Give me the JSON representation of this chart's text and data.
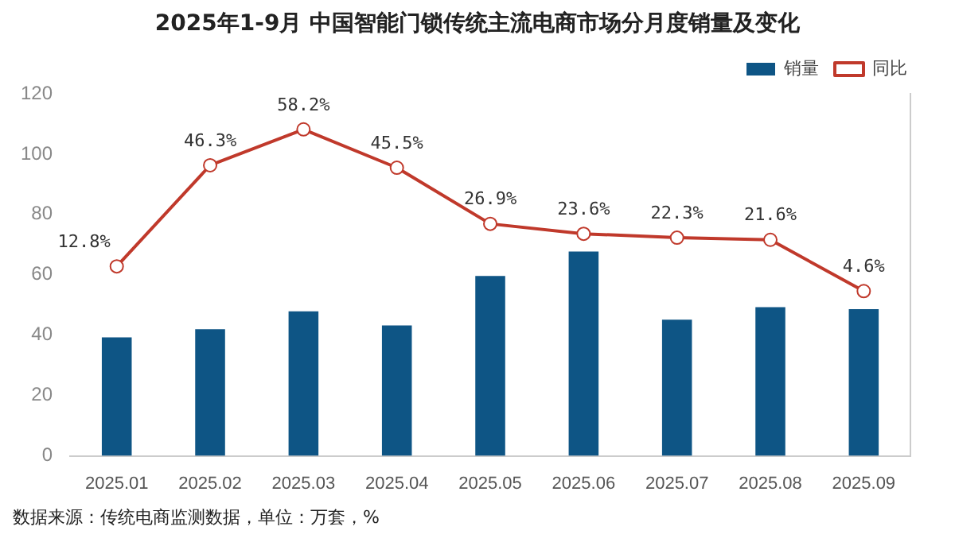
{
  "chart_data": {
    "type": "bar",
    "title": "2025年1-9月 中国智能门锁传统主流电商市场分月度销量及变化",
    "categories": [
      "2025.01",
      "2025.02",
      "2025.03",
      "2025.04",
      "2025.05",
      "2025.06",
      "2025.07",
      "2025.08",
      "2025.09"
    ],
    "series": [
      {
        "name": "销量",
        "color": "#0e5585",
        "values": [
          39.3,
          42.0,
          47.9,
          43.2,
          59.6,
          67.7,
          45.1,
          49.3,
          48.6
        ]
      },
      {
        "name": "同比",
        "type": "line",
        "axis": "y2",
        "color": "#c0392b",
        "marker": "circle",
        "values": [
          12.8,
          46.3,
          58.2,
          45.5,
          26.9,
          23.6,
          22.3,
          21.6,
          4.6
        ],
        "value_labels": [
          "12.8%",
          "46.3%",
          "58.2%",
          "45.5%",
          "26.9%",
          "23.6%",
          "22.3%",
          "21.6%",
          "4.6%"
        ]
      }
    ],
    "ylim": [
      0,
      120
    ],
    "yticks": [
      0,
      20,
      40,
      60,
      80,
      100,
      120
    ],
    "y2lim": [
      -50,
      70
    ],
    "grid": false,
    "legend": "top right",
    "annotations": [
      "数据来源：传统电商监测数据，单位：万套，%"
    ]
  }
}
